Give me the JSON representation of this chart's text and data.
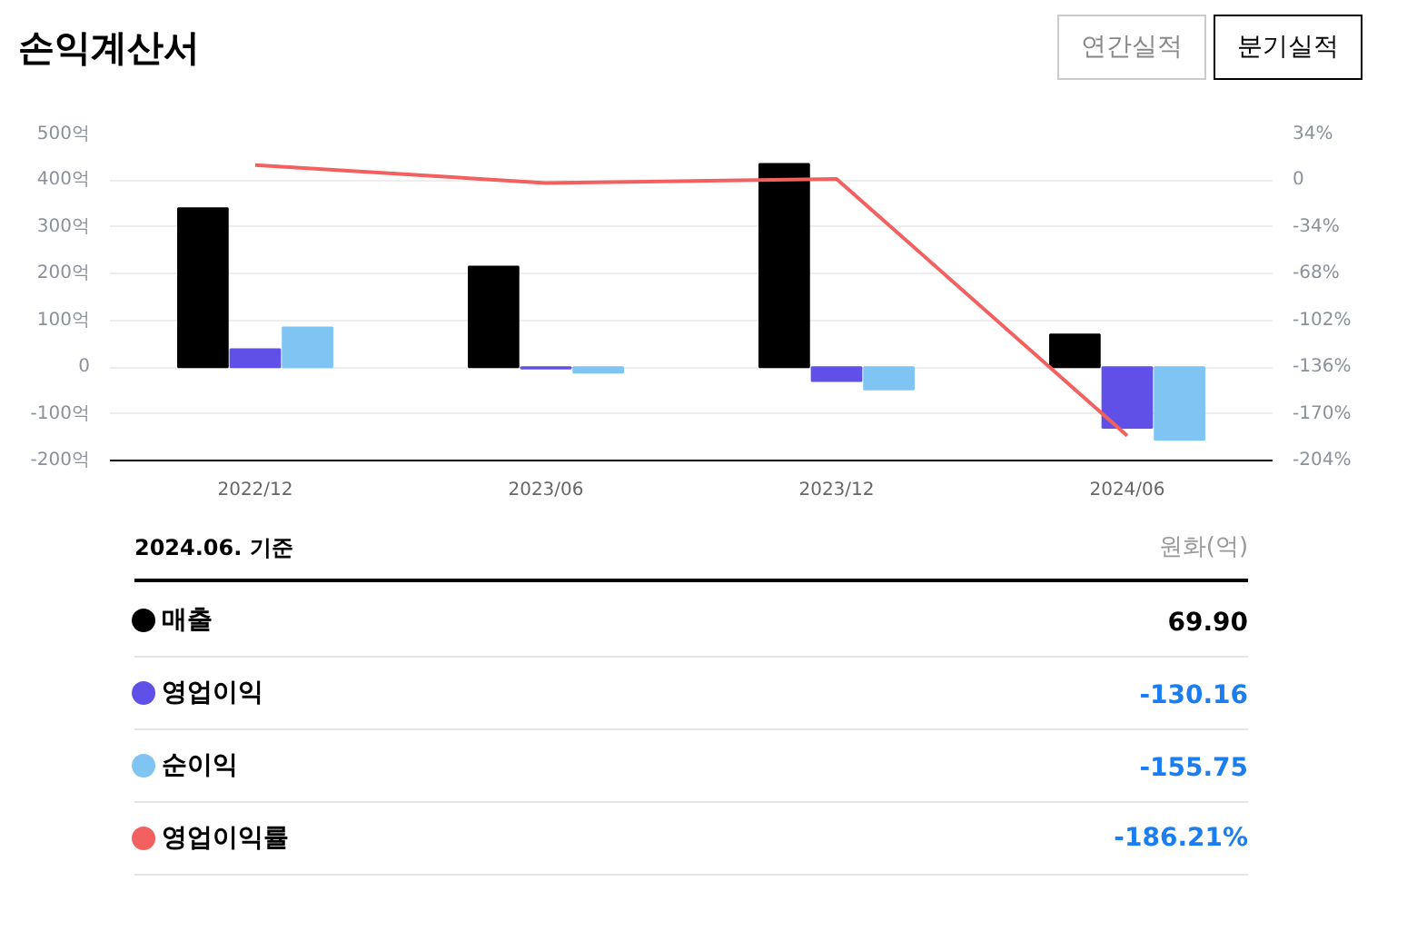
{
  "chart_data": {
    "type": "bar",
    "title": "손익계산서",
    "categories": [
      "2022/12",
      "2023/06",
      "2023/12",
      "2024/06"
    ],
    "series": [
      {
        "name": "매출",
        "color": "#000000",
        "values": [
          340,
          215,
          435,
          70
        ]
      },
      {
        "name": "영업이익",
        "color": "#6050e8",
        "values": [
          38,
          -3,
          -30,
          -130
        ]
      },
      {
        "name": "순이익",
        "color": "#80c4f4",
        "values": [
          85,
          -12,
          -48,
          -156
        ]
      },
      {
        "name": "영업이익률",
        "type": "line",
        "axis": "y2",
        "color": "#f26060",
        "values": [
          11,
          -2,
          1,
          -186
        ]
      }
    ],
    "ylim": [
      -200,
      500
    ],
    "yticks": [
      {
        "value": -200,
        "label": "-200억"
      },
      {
        "value": -100,
        "label": "-100억"
      },
      0,
      {
        "value": 100,
        "label": "100억"
      },
      {
        "value": 200,
        "label": "200억"
      },
      {
        "value": 300,
        "label": "300억"
      },
      {
        "value": 400,
        "label": "400억"
      },
      {
        "value": 500,
        "label": "500억"
      }
    ],
    "y2lim": [
      -204,
      34
    ],
    "y2ticks": [
      {
        "value": -204,
        "label": "-204%"
      },
      {
        "value": -170,
        "label": "-170%"
      },
      {
        "value": -136,
        "label": "-136%"
      },
      {
        "value": -102,
        "label": "-102%"
      },
      {
        "value": -68,
        "label": "-68%"
      },
      {
        "value": -34,
        "label": "-34%"
      },
      0,
      {
        "value": 34,
        "label": "34%"
      }
    ],
    "grid": "y",
    "legend": "bottom",
    "line_style": "solid",
    "marker": "none",
    "annotations": [
      "연간실적",
      "분기실적",
      "2024.06. 기준",
      "원화(억)",
      "69.90",
      "-130.16",
      "-155.75",
      "-186.21%"
    ]
  }
}
